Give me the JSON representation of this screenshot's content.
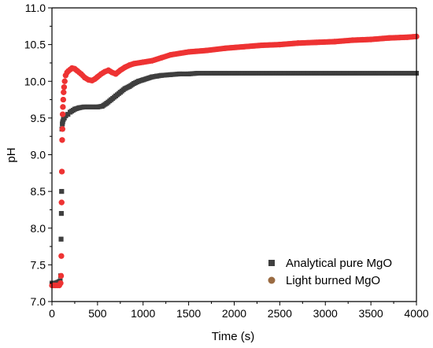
{
  "chart_data": {
    "type": "scatter",
    "xlabel": "Time (s)",
    "ylabel": "pH",
    "xlim": [
      0,
      4000
    ],
    "ylim": [
      7.0,
      11.0
    ],
    "xticks": [
      0,
      500,
      1000,
      1500,
      2000,
      2500,
      3000,
      3500,
      4000
    ],
    "yticks": [
      7.0,
      7.5,
      8.0,
      8.5,
      9.0,
      9.5,
      10.0,
      10.5,
      11.0
    ],
    "grid": false,
    "legend_position": "bottom-right",
    "series": [
      {
        "name": "Analytical pure MgO",
        "marker": "square",
        "color": "#3f3f3f",
        "x": [
          0,
          30,
          60,
          90,
          95,
          100,
          103,
          106,
          110,
          114,
          118,
          125,
          135,
          150,
          175,
          200,
          250,
          300,
          350,
          400,
          450,
          500,
          550,
          600,
          650,
          700,
          750,
          800,
          850,
          900,
          950,
          1000,
          1050,
          1100,
          1150,
          1200,
          1300,
          1400,
          1500,
          1600,
          1700,
          1800,
          1900,
          2000,
          2200,
          2500,
          2800,
          3000,
          3200,
          3500,
          3800,
          4000
        ],
        "y": [
          7.25,
          7.25,
          7.26,
          7.28,
          7.35,
          7.85,
          8.2,
          8.5,
          9.35,
          9.42,
          9.45,
          9.48,
          9.5,
          9.53,
          9.55,
          9.58,
          9.62,
          9.64,
          9.65,
          9.65,
          9.65,
          9.65,
          9.66,
          9.7,
          9.75,
          9.8,
          9.85,
          9.9,
          9.93,
          9.97,
          10.0,
          10.02,
          10.04,
          10.06,
          10.07,
          10.08,
          10.09,
          10.1,
          10.1,
          10.11,
          10.11,
          10.11,
          10.11,
          10.11,
          10.11,
          10.11,
          10.11,
          10.11,
          10.11,
          10.11,
          10.11,
          10.11
        ]
      },
      {
        "name": "Light burned MgO",
        "marker": "circle",
        "color": "#ee3333",
        "x": [
          0,
          20,
          40,
          60,
          80,
          95,
          100,
          103,
          106,
          109,
          112,
          115,
          118,
          120,
          124,
          128,
          133,
          140,
          150,
          165,
          180,
          200,
          220,
          250,
          280,
          320,
          360,
          400,
          440,
          470,
          500,
          540,
          580,
          620,
          660,
          700,
          750,
          800,
          850,
          900,
          1000,
          1100,
          1200,
          1300,
          1500,
          1700,
          1900,
          2100,
          2300,
          2500,
          2700,
          2900,
          3100,
          3300,
          3500,
          3700,
          3900,
          4000
        ],
        "y": [
          7.22,
          7.22,
          7.22,
          7.22,
          7.22,
          7.25,
          7.35,
          7.62,
          8.35,
          8.77,
          9.2,
          9.35,
          9.55,
          9.65,
          9.75,
          9.85,
          9.92,
          10.0,
          10.08,
          10.12,
          10.14,
          10.16,
          10.18,
          10.17,
          10.14,
          10.1,
          10.05,
          10.02,
          10.01,
          10.03,
          10.06,
          10.1,
          10.13,
          10.15,
          10.12,
          10.1,
          10.15,
          10.19,
          10.22,
          10.24,
          10.26,
          10.28,
          10.32,
          10.36,
          10.4,
          10.42,
          10.45,
          10.47,
          10.49,
          10.5,
          10.52,
          10.53,
          10.54,
          10.56,
          10.57,
          10.59,
          10.6,
          10.61
        ]
      }
    ]
  }
}
